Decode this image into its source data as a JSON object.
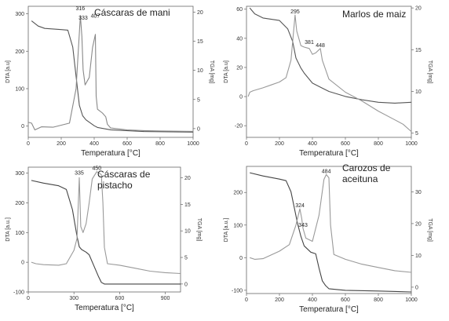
{
  "chart_data": [
    {
      "type": "line",
      "title": "Cáscaras de mani",
      "xlabel": "Temperatura [°C]",
      "ylabel_left": "DTA [a.u]",
      "ylabel_right": "TGA [mg]",
      "xlim": [
        0,
        1000
      ],
      "ylim_left": [
        -30,
        320
      ],
      "ylim_right": [
        -1.5,
        21
      ],
      "x_ticks": [
        0,
        200,
        400,
        600,
        800,
        1000
      ],
      "y_ticks_left": [
        0,
        100,
        200,
        300
      ],
      "y_ticks_right": [
        0,
        5,
        10,
        15,
        20
      ],
      "annotations": [
        {
          "text": "316",
          "x": 316,
          "y": 305
        },
        {
          "text": "333",
          "x": 333,
          "y": 280
        },
        {
          "text": "407",
          "x": 407,
          "y": 285
        }
      ],
      "series": [
        {
          "role": "TGA",
          "axis": "right",
          "color": "#555555",
          "points": [
            [
              20,
              18.5
            ],
            [
              60,
              17.6
            ],
            [
              100,
              17.2
            ],
            [
              200,
              17.0
            ],
            [
              240,
              16.9
            ],
            [
              270,
              14
            ],
            [
              290,
              9
            ],
            [
              310,
              4
            ],
            [
              330,
              2.2
            ],
            [
              350,
              1.5
            ],
            [
              400,
              0.5
            ],
            [
              420,
              0.2
            ],
            [
              500,
              -0.2
            ],
            [
              700,
              -0.5
            ],
            [
              1000,
              -0.6
            ]
          ]
        },
        {
          "role": "DTA",
          "axis": "left",
          "color": "#888888",
          "points": [
            [
              0,
              10
            ],
            [
              20,
              8
            ],
            [
              40,
              -10
            ],
            [
              80,
              -2
            ],
            [
              150,
              -3
            ],
            [
              250,
              8
            ],
            [
              290,
              100
            ],
            [
              316,
              295
            ],
            [
              325,
              240
            ],
            [
              333,
              150
            ],
            [
              345,
              110
            ],
            [
              370,
              130
            ],
            [
              390,
              210
            ],
            [
              407,
              245
            ],
            [
              412,
              80
            ],
            [
              420,
              45
            ],
            [
              450,
              35
            ],
            [
              470,
              25
            ],
            [
              480,
              5
            ],
            [
              500,
              -5
            ],
            [
              600,
              -10
            ],
            [
              700,
              -12
            ],
            [
              800,
              -13
            ],
            [
              1000,
              -14
            ]
          ]
        }
      ]
    },
    {
      "type": "line",
      "title": "Marlos de maiz",
      "xlabel": "Temperatura [°C]",
      "ylabel_left": "DTA [a.u]",
      "ylabel_right": "TGA [mg]",
      "xlim": [
        0,
        1000
      ],
      "ylim_left": [
        -28,
        62
      ],
      "ylim_right": [
        4.5,
        20.2
      ],
      "x_ticks": [
        0,
        200,
        400,
        600,
        800,
        1000
      ],
      "y_ticks_left": [
        -20,
        0,
        20,
        40,
        60
      ],
      "y_ticks_right": [
        5,
        10,
        15,
        20
      ],
      "annotations": [
        {
          "text": "295",
          "x": 295,
          "y": 56
        },
        {
          "text": "381",
          "x": 381,
          "y": 35
        },
        {
          "text": "448",
          "x": 448,
          "y": 33
        }
      ],
      "series": [
        {
          "role": "TGA",
          "axis": "right",
          "color": "#555555",
          "points": [
            [
              20,
              20
            ],
            [
              50,
              19.3
            ],
            [
              100,
              18.8
            ],
            [
              200,
              18.5
            ],
            [
              250,
              17.5
            ],
            [
              280,
              16.0
            ],
            [
              300,
              14.0
            ],
            [
              330,
              12.8
            ],
            [
              350,
              12.2
            ],
            [
              400,
              11.0
            ],
            [
              450,
              10.5
            ],
            [
              500,
              10.0
            ],
            [
              600,
              9.4
            ],
            [
              700,
              9.0
            ],
            [
              800,
              8.7
            ],
            [
              900,
              8.6
            ],
            [
              1000,
              8.7
            ]
          ]
        },
        {
          "role": "DTA",
          "axis": "left",
          "color": "#999999",
          "points": [
            [
              10,
              0
            ],
            [
              20,
              3
            ],
            [
              40,
              4
            ],
            [
              100,
              6
            ],
            [
              150,
              8
            ],
            [
              200,
              10
            ],
            [
              240,
              13
            ],
            [
              270,
              25
            ],
            [
              295,
              56
            ],
            [
              305,
              45
            ],
            [
              330,
              35
            ],
            [
              350,
              34
            ],
            [
              381,
              33
            ],
            [
              400,
              29
            ],
            [
              420,
              30
            ],
            [
              448,
              33
            ],
            [
              460,
              25
            ],
            [
              500,
              12
            ],
            [
              600,
              3
            ],
            [
              700,
              -3
            ],
            [
              800,
              -10
            ],
            [
              900,
              -16
            ],
            [
              950,
              -19
            ],
            [
              1000,
              -24
            ]
          ]
        }
      ]
    },
    {
      "type": "line",
      "title": "Cáscaras de pistacho",
      "xlabel": "Temperatura [°C]",
      "ylabel_left": "DTA [a.u.]",
      "ylabel_right": "TGA [mg]",
      "xlim": [
        0,
        1000
      ],
      "ylim_left": [
        -100,
        320
      ],
      "ylim_right": [
        -1.5,
        22
      ],
      "x_ticks": [
        0,
        300,
        600,
        900
      ],
      "y_ticks_left": [
        -100,
        0,
        100,
        200,
        300
      ],
      "y_ticks_right": [
        0,
        5,
        10,
        15,
        20
      ],
      "annotations": [
        {
          "text": "335",
          "x": 335,
          "y": 290
        },
        {
          "text": "450",
          "x": 450,
          "y": 305
        }
      ],
      "series": [
        {
          "role": "TGA",
          "axis": "right",
          "color": "#444444",
          "points": [
            [
              20,
              19.5
            ],
            [
              100,
              19.0
            ],
            [
              200,
              18.5
            ],
            [
              250,
              17.8
            ],
            [
              290,
              14.0
            ],
            [
              320,
              9.0
            ],
            [
              335,
              7.0
            ],
            [
              350,
              6.5
            ],
            [
              380,
              6.0
            ],
            [
              400,
              5.5
            ],
            [
              430,
              3.5
            ],
            [
              460,
              1.5
            ],
            [
              480,
              0.3
            ],
            [
              500,
              0.0
            ],
            [
              600,
              0.0
            ],
            [
              800,
              0.0
            ],
            [
              1000,
              0.0
            ]
          ]
        },
        {
          "role": "DTA",
          "axis": "left",
          "color": "#999999",
          "points": [
            [
              20,
              0
            ],
            [
              50,
              -5
            ],
            [
              100,
              -8
            ],
            [
              200,
              -10
            ],
            [
              250,
              -5
            ],
            [
              300,
              40
            ],
            [
              320,
              80
            ],
            [
              335,
              285
            ],
            [
              345,
              120
            ],
            [
              360,
              100
            ],
            [
              380,
              130
            ],
            [
              400,
              200
            ],
            [
              420,
              280
            ],
            [
              450,
              305
            ],
            [
              480,
              295
            ],
            [
              490,
              200
            ],
            [
              500,
              50
            ],
            [
              520,
              -5
            ],
            [
              600,
              -10
            ],
            [
              700,
              -20
            ],
            [
              800,
              -30
            ],
            [
              900,
              -35
            ],
            [
              1000,
              -38
            ]
          ]
        }
      ]
    },
    {
      "type": "line",
      "title": "Carozos de aceituna",
      "xlabel": "Temperatura [°C]",
      "ylabel_left": "DTA [a.u.]",
      "ylabel_right": "TGA [mg]",
      "xlim": [
        0,
        1000
      ],
      "ylim_left": [
        -110,
        280
      ],
      "ylim_right": [
        -2,
        38
      ],
      "x_ticks": [
        0,
        200,
        400,
        600,
        800,
        1000
      ],
      "y_ticks_left": [
        -100,
        0,
        100,
        200
      ],
      "y_ticks_right": [
        0,
        10,
        20,
        30
      ],
      "annotations": [
        {
          "text": "324",
          "x": 324,
          "y": 150
        },
        {
          "text": "343",
          "x": 343,
          "y": 90
        },
        {
          "text": "484",
          "x": 484,
          "y": 255
        }
      ],
      "series": [
        {
          "role": "TGA",
          "axis": "right",
          "color": "#444444",
          "points": [
            [
              20,
              36
            ],
            [
              100,
              35
            ],
            [
              200,
              34
            ],
            [
              240,
              33.5
            ],
            [
              270,
              30
            ],
            [
              290,
              25
            ],
            [
              310,
              20
            ],
            [
              330,
              16
            ],
            [
              350,
              13
            ],
            [
              370,
              12
            ],
            [
              390,
              11
            ],
            [
              420,
              10.5
            ],
            [
              440,
              6.0
            ],
            [
              460,
              2.0
            ],
            [
              480,
              0.5
            ],
            [
              500,
              -0.5
            ],
            [
              600,
              -1.0
            ],
            [
              800,
              -1.2
            ],
            [
              1000,
              -1.5
            ]
          ]
        },
        {
          "role": "DTA",
          "axis": "left",
          "color": "#999999",
          "points": [
            [
              20,
              0
            ],
            [
              50,
              -5
            ],
            [
              100,
              -3
            ],
            [
              200,
              20
            ],
            [
              260,
              40
            ],
            [
              300,
              100
            ],
            [
              324,
              150
            ],
            [
              335,
              120
            ],
            [
              343,
              90
            ],
            [
              360,
              60
            ],
            [
              400,
              50
            ],
            [
              440,
              130
            ],
            [
              470,
              240
            ],
            [
              484,
              255
            ],
            [
              500,
              245
            ],
            [
              510,
              100
            ],
            [
              530,
              10
            ],
            [
              600,
              -5
            ],
            [
              700,
              -20
            ],
            [
              800,
              -30
            ],
            [
              900,
              -40
            ],
            [
              1000,
              -45
            ]
          ]
        }
      ]
    }
  ]
}
